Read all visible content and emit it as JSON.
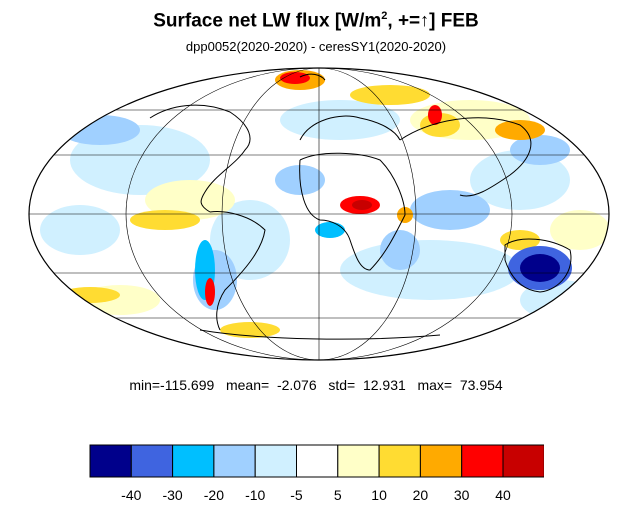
{
  "title": {
    "main": "Surface net LW flux [W/m",
    "superscript": "2",
    "suffix": ", +=",
    "arrow": "↑",
    "tail": "]  FEB"
  },
  "subtitle": "dpp0052(2020-2020) - ceresSY1(2020-2020)",
  "stats": {
    "min_label": "min=",
    "min": "-115.699",
    "mean_label": "mean=",
    "mean": "-2.076",
    "std_label": "std=",
    "std": "12.931",
    "max_label": "max=",
    "max": "73.954"
  },
  "colorbar": {
    "colors": [
      "#00008b",
      "#3f64e0",
      "#00bfff",
      "#a0d0ff",
      "#d0f0ff",
      "#ffffff",
      "#ffffc8",
      "#ffdc32",
      "#ffaa00",
      "#ff0000",
      "#c80000"
    ],
    "tick_labels": [
      "-40",
      "-30",
      "-20",
      "-10",
      "-5",
      "5",
      "10",
      "20",
      "30",
      "40"
    ]
  },
  "map": {
    "projection": "Mollweide",
    "graticule": true,
    "coastlines": true
  }
}
